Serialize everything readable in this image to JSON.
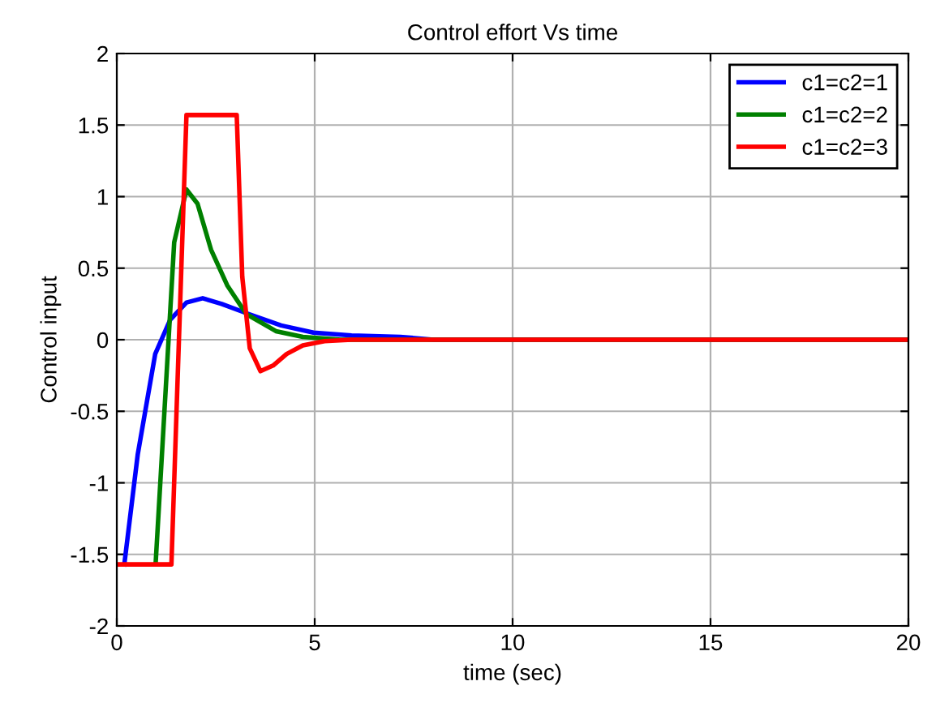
{
  "chart_data": {
    "type": "line",
    "title": "Control effort Vs time",
    "xlabel": "time (sec)",
    "ylabel": "Control input",
    "xlim": [
      0,
      20
    ],
    "xticks": [
      0,
      5,
      10,
      15,
      20
    ],
    "ylim": [
      -2,
      2
    ],
    "yticks": [
      -2,
      -1.5,
      -1,
      -0.5,
      0,
      0.5,
      1,
      1.5,
      2
    ],
    "grid": true,
    "legend": "top right",
    "line_style": "solid",
    "series": [
      {
        "name": "c1=c2=1",
        "color": "#0000ff",
        "x": [
          0.19,
          0.53,
          0.97,
          1.35,
          1.76,
          2.17,
          2.65,
          3.33,
          4.15,
          4.97,
          5.93,
          7.16,
          8,
          20
        ],
        "values": [
          -1.57,
          -0.8,
          -0.1,
          0.14,
          0.26,
          0.29,
          0.25,
          0.18,
          0.1,
          0.05,
          0.03,
          0.02,
          0,
          0
        ]
      },
      {
        "name": "c1=c2=2",
        "color": "#008000",
        "x": [
          0.98,
          1.45,
          1.76,
          2.04,
          2.38,
          2.79,
          3.27,
          4.02,
          4.7,
          5.66,
          20
        ],
        "values": [
          -1.57,
          0.68,
          1.05,
          0.95,
          0.63,
          0.38,
          0.18,
          0.06,
          0.02,
          0,
          0
        ]
      },
      {
        "name": "c1=c2=3",
        "color": "#ff0000",
        "x": [
          0,
          1.38,
          1.76,
          3.03,
          3.17,
          3.36,
          3.63,
          3.95,
          4.29,
          4.7,
          5.25,
          5.93,
          20
        ],
        "values": [
          -1.57,
          -1.57,
          1.57,
          1.57,
          0.44,
          -0.06,
          -0.22,
          -0.18,
          -0.1,
          -0.04,
          -0.01,
          0,
          0
        ]
      }
    ]
  }
}
